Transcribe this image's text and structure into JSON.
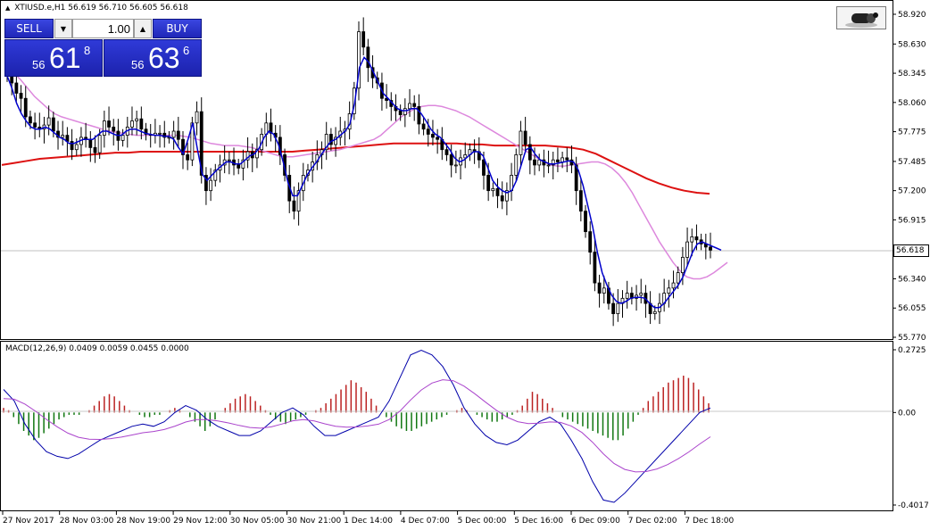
{
  "header": {
    "symbol": "XTIUSD.e,H1",
    "ohlc": "56.619 56.710 56.605 56.618"
  },
  "trade_panel": {
    "sell_label": "SELL",
    "buy_label": "BUY",
    "lot_value": "1.00",
    "sell_price_prefix": "56",
    "sell_price_big": "61",
    "sell_price_sup": "8",
    "buy_price_prefix": "56",
    "buy_price_big": "63",
    "buy_price_sup": "6",
    "spinner_down": "▼",
    "spinner_up": "▲"
  },
  "price_axis": {
    "labels": [
      "58.920",
      "58.630",
      "58.345",
      "58.060",
      "57.775",
      "57.485",
      "57.200",
      "56.915",
      "56.618",
      "56.340",
      "56.055",
      "55.770"
    ],
    "current": "56.618",
    "min": 55.77,
    "max": 58.92
  },
  "macd": {
    "label": "MACD(12,26,9) 0.0409 0.0059 0.0455 0.0000",
    "axis_labels": [
      "0.2725",
      "0.00",
      "-0.4017"
    ],
    "max": 0.2725,
    "min": -0.4017
  },
  "time_axis": {
    "labels": [
      "27 Nov 2017",
      "28 Nov 03:00",
      "28 Nov 19:00",
      "29 Nov 12:00",
      "30 Nov 05:00",
      "30 Nov 21:00",
      "1 Dec 14:00",
      "4 Dec 07:00",
      "5 Dec 00:00",
      "5 Dec 16:00",
      "6 Dec 09:00",
      "7 Dec 02:00",
      "7 Dec 18:00"
    ]
  },
  "colors": {
    "candle": "#000000",
    "ma_fast": "#0000cc",
    "ma_slow": "#dd88dd",
    "ma_long": "#dd1111",
    "macd_pos": "#bb2222",
    "macd_neg": "#117711",
    "macd_line": "#0000aa",
    "signal_line": "#aa44cc"
  },
  "chart_data": [
    {
      "type": "candlestick",
      "title": "XTIUSD.e,H1",
      "ylim": [
        55.77,
        58.92
      ],
      "close": [
        58.32,
        58.25,
        58.15,
        58.1,
        57.92,
        57.86,
        57.82,
        57.8,
        57.84,
        57.91,
        57.78,
        57.72,
        57.74,
        57.68,
        57.6,
        57.65,
        57.72,
        57.7,
        57.62,
        57.57,
        57.74,
        57.88,
        57.82,
        57.78,
        57.69,
        57.74,
        57.82,
        57.88,
        57.9,
        57.8,
        57.75,
        57.74,
        57.76,
        57.76,
        57.72,
        57.72,
        57.78,
        57.7,
        57.55,
        57.5,
        57.86,
        57.97,
        57.35,
        57.2,
        57.3,
        57.4,
        57.45,
        57.5,
        57.5,
        57.45,
        57.42,
        57.5,
        57.58,
        57.52,
        57.6,
        57.75,
        57.86,
        57.76,
        57.72,
        57.55,
        57.35,
        57.1,
        57.0,
        57.2,
        57.35,
        57.4,
        57.48,
        57.55,
        57.6,
        57.75,
        57.65,
        57.72,
        57.78,
        57.8,
        57.95,
        58.2,
        58.75,
        58.6,
        58.4,
        58.3,
        58.25,
        58.1,
        58.08,
        58.02,
        57.98,
        57.94,
        58.0,
        58.05,
        58.02,
        57.85,
        57.8,
        57.75,
        57.72,
        57.7,
        57.6,
        57.55,
        57.45,
        57.45,
        57.52,
        57.55,
        57.6,
        57.58,
        57.5,
        57.35,
        57.2,
        57.22,
        57.15,
        57.1,
        57.2,
        57.35,
        57.55,
        57.78,
        57.65,
        57.5,
        57.45,
        57.5,
        57.45,
        57.45,
        57.5,
        57.48,
        57.52,
        57.5,
        57.45,
        57.2,
        57.0,
        56.8,
        56.6,
        56.3,
        56.2,
        56.25,
        56.1,
        56.0,
        56.1,
        56.15,
        56.2,
        56.15,
        56.18,
        56.2,
        56.1,
        56.0,
        56.02,
        56.1,
        56.2,
        56.25,
        56.3,
        56.4,
        56.55,
        56.7,
        56.75,
        56.72,
        56.68,
        56.65,
        56.62
      ]
    },
    {
      "type": "line",
      "series": [
        {
          "values": [
            58.32,
            58.2,
            58.05,
            57.95,
            57.88,
            57.82,
            57.8,
            57.8,
            57.82,
            57.8,
            57.76,
            57.72,
            57.7,
            57.66,
            57.66,
            57.68,
            57.7,
            57.7,
            57.7,
            57.74,
            57.78,
            57.78,
            57.76,
            57.74,
            57.74,
            57.78,
            57.8,
            57.8,
            57.78,
            57.76,
            57.75,
            57.74,
            57.74,
            57.73,
            57.73,
            57.7,
            57.62,
            57.56,
            57.7,
            57.86,
            57.6,
            57.36,
            57.3,
            57.35,
            57.4,
            57.44,
            57.48,
            57.48,
            57.46,
            57.46,
            57.5,
            57.54,
            57.56,
            57.62,
            57.72,
            57.78,
            57.75,
            57.65,
            57.48,
            57.28,
            57.15,
            57.15,
            57.25,
            57.35,
            57.42,
            57.48,
            57.55,
            57.62,
            57.68,
            57.7,
            57.74,
            57.78,
            57.85,
            58.05,
            58.4,
            58.5,
            58.45,
            58.35,
            58.25,
            58.15,
            58.1,
            58.05,
            58.0,
            57.98,
            57.98,
            58.0,
            58.0,
            57.95,
            57.88,
            57.8,
            57.75,
            57.72,
            57.66,
            57.6,
            57.52,
            57.48,
            57.5,
            57.54,
            57.58,
            57.58,
            57.54,
            57.42,
            57.3,
            57.24,
            57.2,
            57.18,
            57.2,
            57.3,
            57.45,
            57.6,
            57.62,
            57.55,
            57.5,
            57.48,
            57.46,
            57.46,
            57.47,
            57.48,
            57.49,
            57.48,
            57.4,
            57.25,
            57.05,
            56.85,
            56.6,
            56.4,
            56.28,
            56.18,
            56.12,
            56.1,
            56.12,
            56.15,
            56.16,
            56.16,
            56.15,
            56.1,
            56.06,
            56.06,
            56.1,
            56.16,
            56.22,
            56.28,
            56.36,
            56.48,
            56.6,
            56.68,
            56.7,
            56.68,
            56.66,
            56.64,
            56.62
          ]
        },
        {
          "values": [
            58.4,
            58.35,
            58.28,
            58.2,
            58.12,
            58.06,
            58.0,
            57.95,
            57.92,
            57.9,
            57.88,
            57.86,
            57.84,
            57.82,
            57.8,
            57.78,
            57.77,
            57.76,
            57.75,
            57.74,
            57.74,
            57.74,
            57.74,
            57.74,
            57.74,
            57.74,
            57.73,
            57.72,
            57.7,
            57.68,
            57.66,
            57.65,
            57.64,
            57.64,
            57.64,
            57.63,
            57.62,
            57.6,
            57.58,
            57.56,
            57.54,
            57.53,
            57.53,
            57.54,
            57.55,
            57.56,
            57.57,
            57.58,
            57.59,
            57.6,
            57.62,
            57.64,
            57.66,
            57.68,
            57.7,
            57.74,
            57.8,
            57.86,
            57.92,
            57.96,
            58.0,
            58.02,
            58.03,
            58.03,
            58.02,
            58.0,
            57.98,
            57.95,
            57.92,
            57.88,
            57.84,
            57.8,
            57.76,
            57.72,
            57.68,
            57.64,
            57.6,
            57.56,
            57.52,
            57.48,
            57.45,
            57.44,
            57.44,
            57.45,
            57.46,
            57.47,
            57.48,
            57.48,
            57.46,
            57.42,
            57.36,
            57.28,
            57.18,
            57.06,
            56.94,
            56.82,
            56.7,
            56.6,
            56.5,
            56.42,
            56.36,
            56.34,
            56.34,
            56.36,
            56.4,
            56.45,
            56.5
          ]
        },
        {
          "values": [
            57.45,
            57.47,
            57.49,
            57.51,
            57.52,
            57.53,
            57.54,
            57.55,
            57.56,
            57.57,
            57.57,
            57.58,
            57.58,
            57.58,
            57.58,
            57.58,
            57.58,
            57.58,
            57.58,
            57.58,
            57.58,
            57.58,
            57.58,
            57.58,
            57.59,
            57.6,
            57.61,
            57.62,
            57.63,
            57.64,
            57.65,
            57.66,
            57.66,
            57.66,
            57.66,
            57.66,
            57.66,
            57.65,
            57.65,
            57.64,
            57.64,
            57.64,
            57.64,
            57.64,
            57.63,
            57.62,
            57.6,
            57.56,
            57.5,
            57.44,
            57.38,
            57.32,
            57.27,
            57.23,
            57.2,
            57.18,
            57.17
          ]
        }
      ]
    },
    {
      "type": "bar",
      "title": "MACD(12,26,9) 0.0409 0.0059 0.0455 0.0000",
      "ylim": [
        -0.4017,
        0.2725
      ],
      "values": [
        0.02,
        0.01,
        -0.02,
        -0.05,
        -0.08,
        -0.1,
        -0.12,
        -0.11,
        -0.09,
        -0.07,
        -0.05,
        -0.03,
        -0.02,
        -0.01,
        -0.01,
        -0.01,
        0.0,
        0.01,
        0.03,
        0.05,
        0.07,
        0.08,
        0.07,
        0.05,
        0.03,
        0.01,
        0.0,
        -0.01,
        -0.02,
        -0.02,
        -0.01,
        -0.01,
        0.0,
        0.01,
        0.02,
        0.01,
        0.0,
        -0.02,
        -0.04,
        -0.06,
        -0.08,
        -0.06,
        -0.03,
        0.0,
        0.02,
        0.04,
        0.06,
        0.07,
        0.08,
        0.07,
        0.05,
        0.03,
        0.01,
        -0.01,
        -0.03,
        -0.04,
        -0.05,
        -0.04,
        -0.03,
        -0.02,
        -0.01,
        0.0,
        0.01,
        0.02,
        0.04,
        0.06,
        0.08,
        0.1,
        0.12,
        0.14,
        0.13,
        0.11,
        0.09,
        0.06,
        0.03,
        0.0,
        -0.02,
        -0.04,
        -0.06,
        -0.07,
        -0.08,
        -0.08,
        -0.07,
        -0.06,
        -0.05,
        -0.04,
        -0.03,
        -0.02,
        -0.01,
        0.0,
        0.01,
        0.02,
        0.01,
        0.0,
        -0.01,
        -0.02,
        -0.03,
        -0.04,
        -0.04,
        -0.03,
        -0.02,
        -0.01,
        0.01,
        0.03,
        0.06,
        0.09,
        0.08,
        0.06,
        0.04,
        0.02,
        0.0,
        -0.02,
        -0.03,
        -0.04,
        -0.05,
        -0.06,
        -0.07,
        -0.08,
        -0.09,
        -0.1,
        -0.11,
        -0.12,
        -0.12,
        -0.1,
        -0.07,
        -0.04,
        -0.01,
        0.02,
        0.05,
        0.07,
        0.09,
        0.11,
        0.13,
        0.14,
        0.15,
        0.16,
        0.15,
        0.13,
        0.1,
        0.07,
        0.04
      ]
    }
  ]
}
